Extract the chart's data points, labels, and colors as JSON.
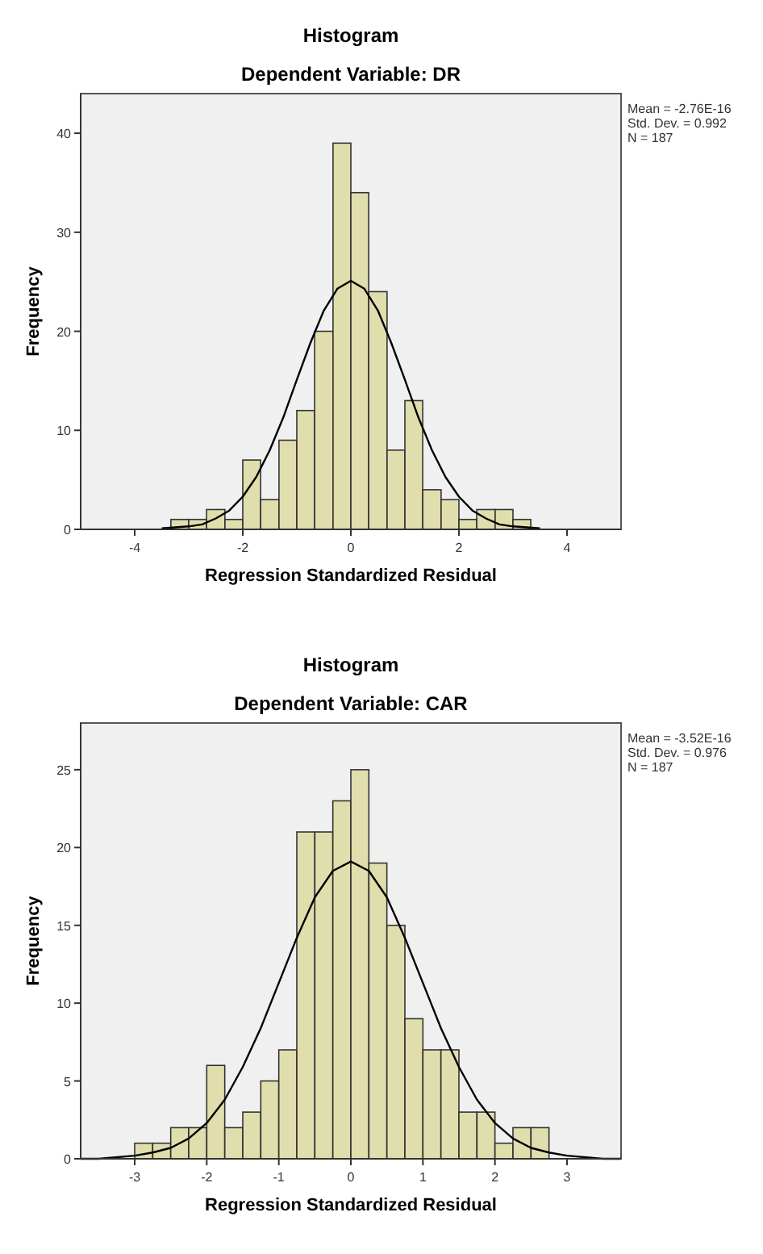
{
  "chart_data": [
    {
      "type": "histogram",
      "title": "Histogram",
      "subtitle": "Dependent Variable: DR",
      "xlabel": "Regression Standardized Residual",
      "ylabel": "Frequency",
      "bins": [
        -3.33,
        -3.0,
        -2.67,
        -2.33,
        -2.0,
        -1.67,
        -1.33,
        -1.0,
        -0.67,
        -0.33,
        0,
        0.33,
        0.67,
        1.0,
        1.33,
        1.67,
        2.0,
        2.33,
        2.67,
        3.0,
        3.33
      ],
      "series": [
        {
          "color": "#dedba2",
          "values": [
            1,
            1,
            2,
            1,
            7,
            3,
            9,
            12,
            20,
            39,
            34,
            24,
            8,
            13,
            4,
            3,
            1,
            2,
            2,
            1
          ]
        },
        {
          "type": "line",
          "color": "#000000",
          "x": [
            -3.5,
            -3,
            -2.75,
            -2.5,
            -2.25,
            -2,
            -1.75,
            -1.5,
            -1.25,
            -1,
            -0.75,
            -0.5,
            -0.25,
            0,
            0.25,
            0.5,
            0.75,
            1,
            1.25,
            1.5,
            1.75,
            2,
            2.25,
            2.5,
            2.75,
            3,
            3.5
          ],
          "values": [
            0.1,
            0.3,
            0.5,
            1.1,
            1.9,
            3.3,
            5.3,
            8.0,
            11.3,
            15.1,
            18.8,
            22.1,
            24.3,
            25.1,
            24.3,
            22.1,
            18.8,
            15.1,
            11.3,
            8.0,
            5.3,
            3.3,
            1.9,
            1.1,
            0.5,
            0.3,
            0.1
          ]
        }
      ],
      "xlim": [
        -5,
        5
      ],
      "xticks": [
        -4,
        -2,
        0,
        2,
        4
      ],
      "ylim": [
        0,
        44
      ],
      "yticks": [
        0,
        10,
        20,
        30,
        40
      ],
      "marker": "none",
      "line_style": "solid",
      "annotations": [
        "Mean = -2.76E-16",
        "Std. Dev. = 0.992",
        "N = 187"
      ]
    },
    {
      "type": "histogram",
      "title": "Histogram",
      "subtitle": "Dependent Variable: CAR",
      "xlabel": "Regression Standardized Residual",
      "ylabel": "Frequency",
      "bins": [
        -3.0,
        -2.75,
        -2.5,
        -2.25,
        -2.0,
        -1.75,
        -1.5,
        -1.25,
        -1.0,
        -0.75,
        -0.5,
        -0.25,
        0,
        0.25,
        0.5,
        0.75,
        1.0,
        1.25,
        1.5,
        1.75,
        2.0,
        2.25,
        2.5,
        2.75
      ],
      "series": [
        {
          "color": "#dedba2",
          "values": [
            1,
            1,
            2,
            2,
            6,
            2,
            3,
            5,
            7,
            21,
            21,
            23,
            25,
            19,
            15,
            9,
            7,
            7,
            3,
            3,
            1,
            2,
            2
          ]
        },
        {
          "type": "line",
          "color": "#000000",
          "x": [
            -3.75,
            -3.5,
            -3,
            -2.75,
            -2.5,
            -2.25,
            -2,
            -1.75,
            -1.5,
            -1.25,
            -1,
            -0.75,
            -0.5,
            -0.25,
            0,
            0.25,
            0.5,
            0.75,
            1,
            1.25,
            1.5,
            1.75,
            2,
            2.25,
            2.5,
            2.75,
            3,
            3.5,
            3.75
          ],
          "values": [
            0,
            0,
            0.2,
            0.4,
            0.7,
            1.3,
            2.3,
            3.8,
            5.9,
            8.4,
            11.3,
            14.2,
            16.8,
            18.5,
            19.1,
            18.5,
            16.8,
            14.2,
            11.3,
            8.4,
            5.9,
            3.8,
            2.3,
            1.3,
            0.7,
            0.4,
            0.2,
            0,
            0
          ]
        }
      ],
      "xlim": [
        -3.75,
        3.75
      ],
      "xticks": [
        -3,
        -2,
        -1,
        0,
        1,
        2,
        3
      ],
      "ylim": [
        0,
        28
      ],
      "yticks": [
        0,
        5,
        10,
        15,
        20,
        25
      ],
      "marker": "none",
      "line_style": "solid",
      "annotations": [
        "Mean = -3.52E-16",
        "Std. Dev. = 0.976",
        "N = 187"
      ]
    }
  ]
}
